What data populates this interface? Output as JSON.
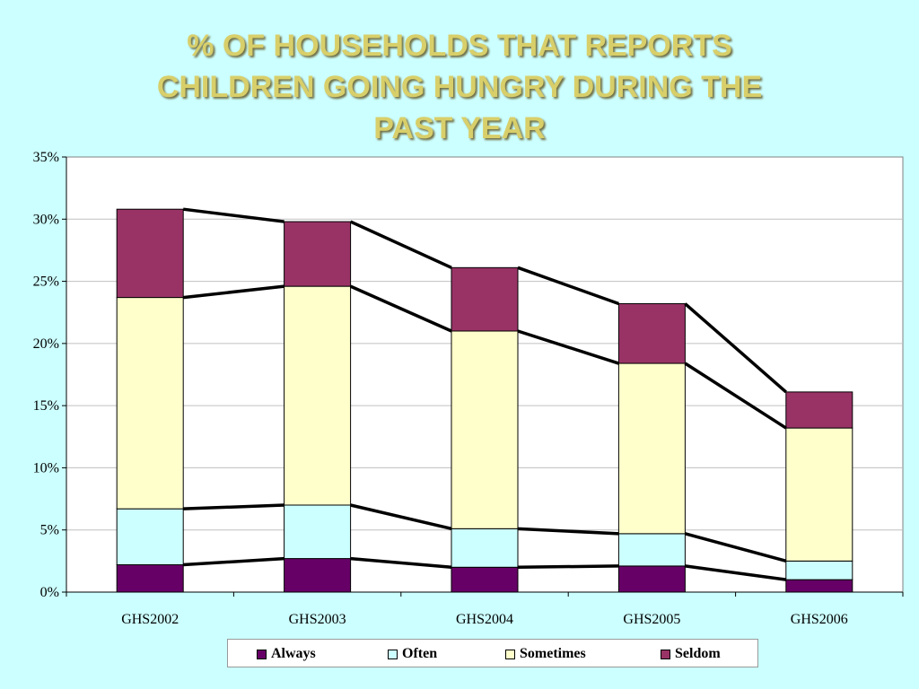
{
  "title_lines": [
    "% OF HOUSEHOLDS THAT REPORTS",
    "CHILDREN GOING HUNGRY DURING THE",
    "PAST YEAR"
  ],
  "colors": {
    "background": "#ccffff",
    "title": "#d8cf6a",
    "Always": "#660066",
    "Often": "#ccffff",
    "Sometimes": "#ffffcc",
    "Seldom": "#993366",
    "connector": "#000000"
  },
  "chart_data": {
    "type": "bar",
    "stacked": true,
    "title": "% OF HOUSEHOLDS THAT REPORTS CHILDREN GOING HUNGRY DURING THE PAST YEAR",
    "categories": [
      "GHS2002",
      "GHS2003",
      "GHS2004",
      "GHS2005",
      "GHS2006"
    ],
    "series": [
      {
        "name": "Always",
        "values": [
          2.2,
          2.7,
          2.0,
          2.1,
          1.0
        ]
      },
      {
        "name": "Often",
        "values": [
          4.5,
          4.3,
          3.1,
          2.6,
          1.5
        ]
      },
      {
        "name": "Sometimes",
        "values": [
          17.0,
          17.6,
          15.9,
          13.7,
          10.7
        ]
      },
      {
        "name": "Seldom",
        "values": [
          7.1,
          5.2,
          5.1,
          4.8,
          2.9
        ]
      }
    ],
    "ylim": [
      0,
      35
    ],
    "yticks": [
      0,
      5,
      10,
      15,
      20,
      25,
      30,
      35
    ],
    "ytick_labels": [
      "0%",
      "5%",
      "10%",
      "15%",
      "20%",
      "25%",
      "30%",
      "35%"
    ],
    "grid": true,
    "series_lines": true,
    "legend": "bottom"
  }
}
